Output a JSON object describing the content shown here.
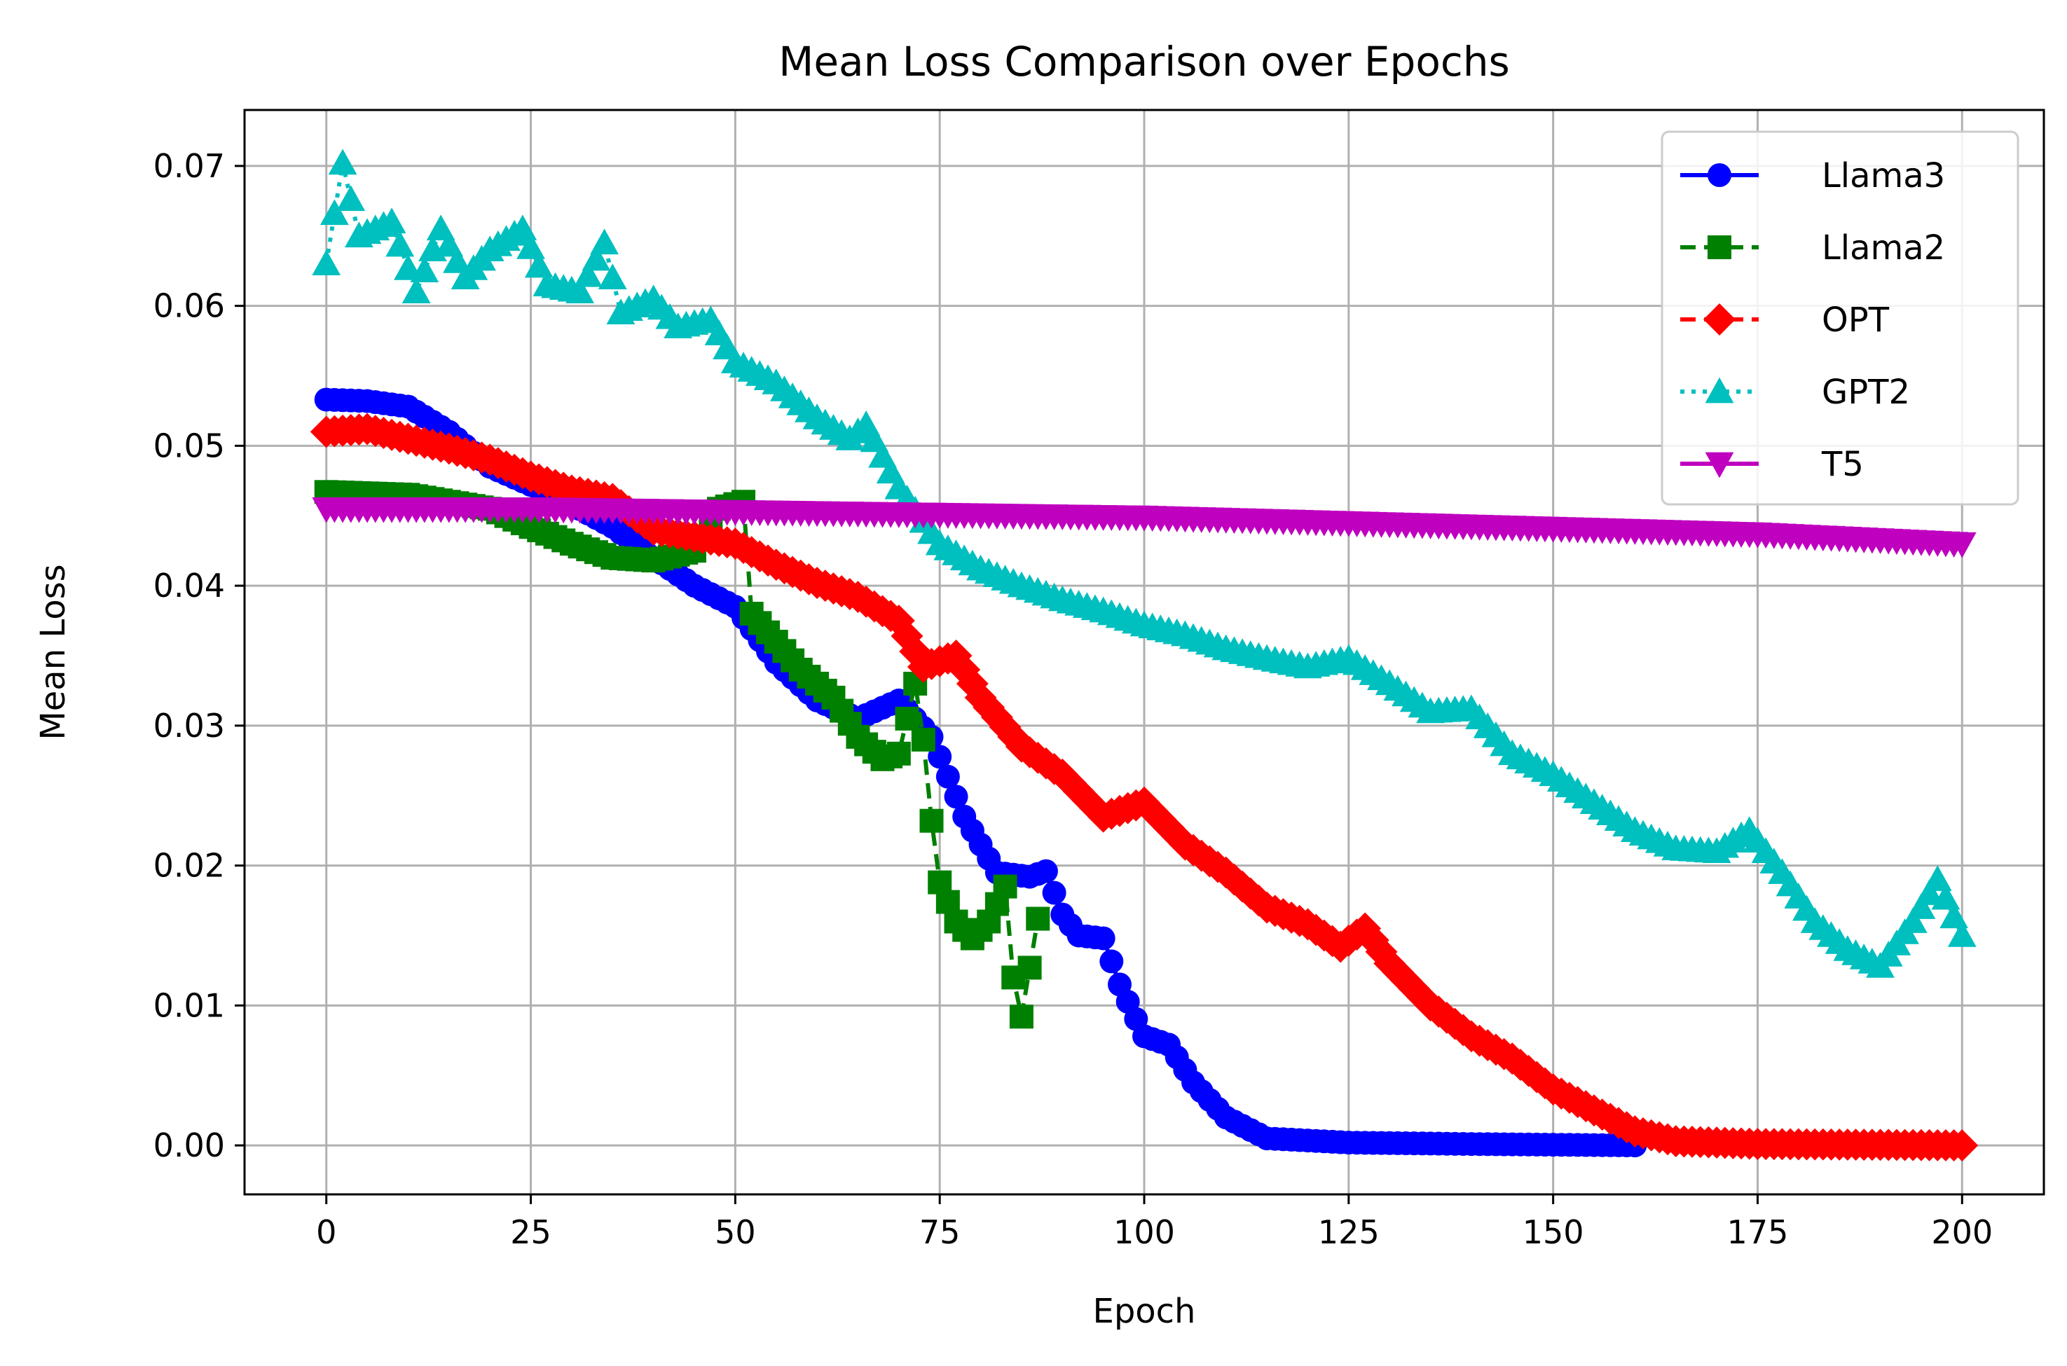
{
  "chart_data": {
    "type": "line",
    "title": "Mean Loss Comparison over Epochs",
    "xlabel": "Epoch",
    "ylabel": "Mean Loss",
    "xlim": [
      -10,
      210
    ],
    "ylim": [
      -0.0035,
      0.074
    ],
    "x_ticks": [
      0,
      25,
      50,
      75,
      100,
      125,
      150,
      175,
      200
    ],
    "x_tick_labels": [
      "0",
      "25",
      "50",
      "75",
      "100",
      "125",
      "150",
      "175",
      "200"
    ],
    "y_ticks": [
      0,
      0.01,
      0.02,
      0.03,
      0.04,
      0.05,
      0.06,
      0.07
    ],
    "y_tick_labels": [
      "0.00",
      "0.01",
      "0.02",
      "0.03",
      "0.04",
      "0.05",
      "0.06",
      "0.07"
    ],
    "grid": true,
    "legend_position": "top-right",
    "series": [
      {
        "name": "Llama3",
        "color": "#0000ff",
        "line_style": "solid",
        "marker": "circle",
        "points": [
          [
            0,
            0.0533
          ],
          [
            5,
            0.0532
          ],
          [
            10,
            0.0528
          ],
          [
            15,
            0.051
          ],
          [
            20,
            0.0485
          ],
          [
            25,
            0.0472
          ],
          [
            30,
            0.0458
          ],
          [
            35,
            0.0442
          ],
          [
            40,
            0.042
          ],
          [
            45,
            0.04
          ],
          [
            50,
            0.0385
          ],
          [
            55,
            0.0345
          ],
          [
            60,
            0.0318
          ],
          [
            65,
            0.0305
          ],
          [
            70,
            0.0318
          ],
          [
            74,
            0.0292
          ],
          [
            78,
            0.0235
          ],
          [
            82,
            0.0195
          ],
          [
            86,
            0.0192
          ],
          [
            88,
            0.0196
          ],
          [
            90,
            0.0165
          ],
          [
            92,
            0.015
          ],
          [
            95,
            0.0148
          ],
          [
            97,
            0.0115
          ],
          [
            100,
            0.0078
          ],
          [
            103,
            0.0072
          ],
          [
            106,
            0.0045
          ],
          [
            110,
            0.002
          ],
          [
            115,
            0.0005
          ],
          [
            125,
            0.0002
          ],
          [
            140,
            0.0001
          ],
          [
            160,
            0.0
          ]
        ]
      },
      {
        "name": "Llama2",
        "color": "#008000",
        "line_style": "dashed",
        "marker": "square",
        "points": [
          [
            0,
            0.0467
          ],
          [
            10,
            0.0465
          ],
          [
            20,
            0.0455
          ],
          [
            25,
            0.0442
          ],
          [
            30,
            0.043
          ],
          [
            35,
            0.042
          ],
          [
            40,
            0.0418
          ],
          [
            45,
            0.0425
          ],
          [
            48,
            0.0455
          ],
          [
            51,
            0.046
          ],
          [
            52,
            0.038
          ],
          [
            55,
            0.036
          ],
          [
            58,
            0.034
          ],
          [
            62,
            0.032
          ],
          [
            65,
            0.0292
          ],
          [
            68,
            0.0276
          ],
          [
            70,
            0.028
          ],
          [
            72,
            0.033
          ],
          [
            73,
            0.029
          ],
          [
            74,
            0.0232
          ],
          [
            75,
            0.0188
          ],
          [
            77,
            0.016
          ],
          [
            79,
            0.0148
          ],
          [
            81,
            0.016
          ],
          [
            83,
            0.0185
          ],
          [
            84,
            0.012
          ],
          [
            85,
            0.0092
          ],
          [
            87,
            0.0162
          ]
        ]
      },
      {
        "name": "OPT",
        "color": "#ff0000",
        "line_style": "dashed",
        "marker": "diamond",
        "points": [
          [
            0,
            0.051
          ],
          [
            5,
            0.0512
          ],
          [
            10,
            0.0505
          ],
          [
            15,
            0.0498
          ],
          [
            20,
            0.049
          ],
          [
            25,
            0.0478
          ],
          [
            30,
            0.0468
          ],
          [
            35,
            0.0462
          ],
          [
            40,
            0.044
          ],
          [
            45,
            0.0435
          ],
          [
            50,
            0.043
          ],
          [
            55,
            0.0415
          ],
          [
            60,
            0.0402
          ],
          [
            65,
            0.0392
          ],
          [
            70,
            0.0375
          ],
          [
            73,
            0.0342
          ],
          [
            77,
            0.035
          ],
          [
            80,
            0.032
          ],
          [
            85,
            0.0285
          ],
          [
            90,
            0.0265
          ],
          [
            95,
            0.0235
          ],
          [
            100,
            0.0245
          ],
          [
            105,
            0.0215
          ],
          [
            110,
            0.0195
          ],
          [
            115,
            0.017
          ],
          [
            120,
            0.0158
          ],
          [
            124,
            0.0142
          ],
          [
            127,
            0.0155
          ],
          [
            130,
            0.013
          ],
          [
            135,
            0.01
          ],
          [
            140,
            0.0078
          ],
          [
            145,
            0.0062
          ],
          [
            150,
            0.004
          ],
          [
            155,
            0.0025
          ],
          [
            160,
            0.001
          ],
          [
            165,
            0.0003
          ],
          [
            175,
            0.0001
          ],
          [
            200,
            0.0
          ]
        ]
      },
      {
        "name": "GPT2",
        "color": "#00bfbf",
        "line_style": "dotted",
        "marker": "triangle-up",
        "points": [
          [
            0,
            0.063
          ],
          [
            2,
            0.0702
          ],
          [
            4,
            0.065
          ],
          [
            8,
            0.066
          ],
          [
            11,
            0.061
          ],
          [
            14,
            0.0655
          ],
          [
            17,
            0.062
          ],
          [
            20,
            0.064
          ],
          [
            24,
            0.0655
          ],
          [
            27,
            0.0615
          ],
          [
            31,
            0.061
          ],
          [
            34,
            0.0645
          ],
          [
            36,
            0.0595
          ],
          [
            40,
            0.0605
          ],
          [
            43,
            0.0585
          ],
          [
            47,
            0.059
          ],
          [
            50,
            0.056
          ],
          [
            55,
            0.0545
          ],
          [
            60,
            0.052
          ],
          [
            64,
            0.0505
          ],
          [
            66,
            0.0515
          ],
          [
            70,
            0.047
          ],
          [
            75,
            0.043
          ],
          [
            80,
            0.0412
          ],
          [
            85,
            0.04
          ],
          [
            90,
            0.039
          ],
          [
            95,
            0.0382
          ],
          [
            100,
            0.0372
          ],
          [
            105,
            0.0365
          ],
          [
            110,
            0.0355
          ],
          [
            115,
            0.0348
          ],
          [
            120,
            0.0342
          ],
          [
            125,
            0.0348
          ],
          [
            130,
            0.033
          ],
          [
            135,
            0.031
          ],
          [
            140,
            0.0312
          ],
          [
            145,
            0.028
          ],
          [
            150,
            0.0265
          ],
          [
            155,
            0.0245
          ],
          [
            160,
            0.0225
          ],
          [
            165,
            0.0212
          ],
          [
            170,
            0.021
          ],
          [
            174,
            0.0225
          ],
          [
            178,
            0.0195
          ],
          [
            182,
            0.016
          ],
          [
            186,
            0.014
          ],
          [
            190,
            0.0128
          ],
          [
            194,
            0.016
          ],
          [
            197,
            0.019
          ],
          [
            200,
            0.015
          ]
        ]
      },
      {
        "name": "T5",
        "color": "#bf00bf",
        "line_style": "solid",
        "marker": "triangle-down",
        "points": [
          [
            0,
            0.0455
          ],
          [
            25,
            0.0455
          ],
          [
            50,
            0.0453
          ],
          [
            75,
            0.0451
          ],
          [
            100,
            0.0449
          ],
          [
            125,
            0.0445
          ],
          [
            150,
            0.0441
          ],
          [
            175,
            0.0437
          ],
          [
            200,
            0.043
          ]
        ]
      }
    ]
  }
}
